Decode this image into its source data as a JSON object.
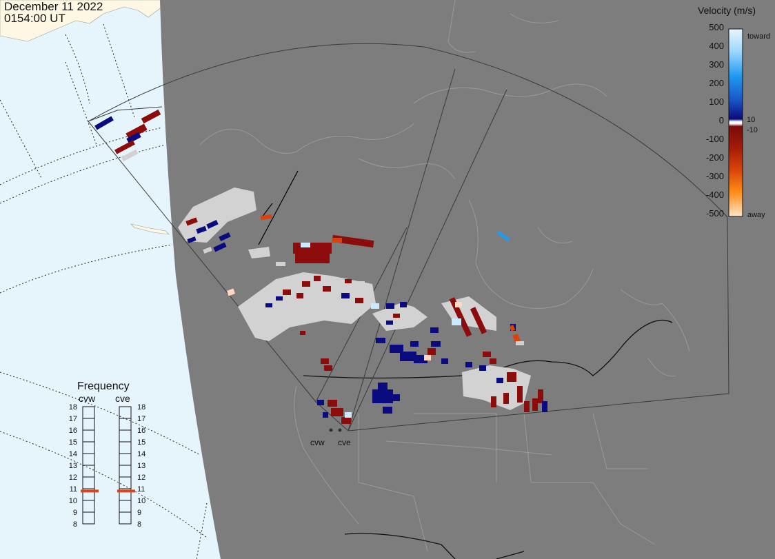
{
  "header": {
    "date": "December 11 2022",
    "time": "0154:00 UT"
  },
  "colors": {
    "ocean": "#e6f4fc",
    "land_ice": "#fdf7e3",
    "night_shade": "#7d7d7d",
    "ground_scatter": "#d2d2d2"
  },
  "radars": [
    {
      "id": "cvw",
      "label": "cvw"
    },
    {
      "id": "cve",
      "label": "cve"
    }
  ],
  "velocity_scale": {
    "title": "Velocity (m/s)",
    "ticks": [
      "500",
      "400",
      "300",
      "200",
      "100",
      "0",
      "-100",
      "-200",
      "-300",
      "-400",
      "-500"
    ],
    "inner_labels": [
      "10",
      "-10"
    ],
    "toward_label": "toward",
    "away_label": "away"
  },
  "frequency": {
    "title": "Frequency",
    "cvw_label": "cvw",
    "cve_label": "cve",
    "ticks": [
      "18",
      "17",
      "16",
      "15",
      "14",
      "13",
      "12",
      "11",
      "10",
      "9",
      "8"
    ],
    "cvw_value_mhz": 10.8,
    "cve_value_mhz": 10.8
  }
}
